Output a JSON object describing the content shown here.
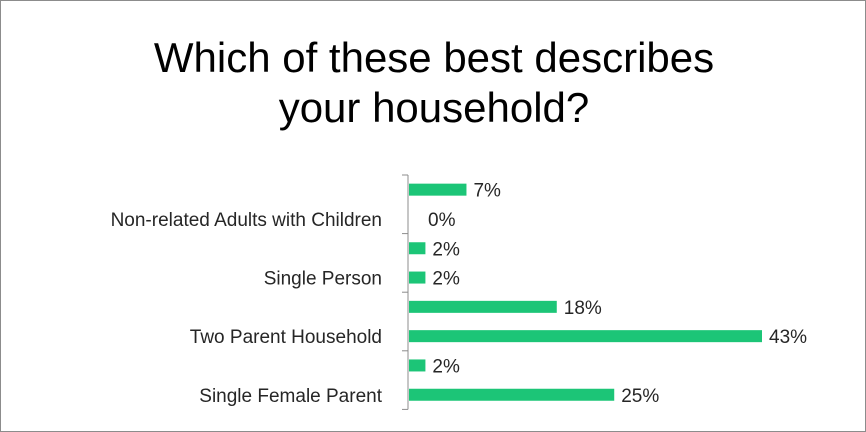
{
  "chart_data": {
    "type": "bar",
    "orientation": "horizontal",
    "title": "Which of these best describes your household?",
    "categories": [
      "Non-related Adults with Children",
      "Single Person",
      "Two Parent Household",
      "Single Female Parent"
    ],
    "bars": [
      {
        "category": "",
        "value": 7,
        "label": "7%"
      },
      {
        "category": "Non-related Adults with Children",
        "value": 0,
        "label": "0%"
      },
      {
        "category": "",
        "value": 2,
        "label": "2%"
      },
      {
        "category": "Single Person",
        "value": 2,
        "label": "2%"
      },
      {
        "category": "",
        "value": 18,
        "label": "18%"
      },
      {
        "category": "Two Parent Household",
        "value": 43,
        "label": "43%"
      },
      {
        "category": "",
        "value": 2,
        "label": "2%"
      },
      {
        "category": "Single Female Parent",
        "value": 25,
        "label": "25%"
      }
    ],
    "value_unit": "%",
    "xlim": [
      0,
      43
    ],
    "grid": false,
    "legend": "none",
    "colors": {
      "bar": "#1cc577",
      "axis": "#8c8c8c",
      "text": "#262626"
    }
  }
}
